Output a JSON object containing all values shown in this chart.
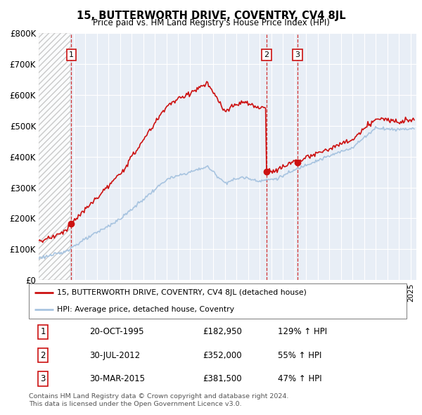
{
  "title": "15, BUTTERWORTH DRIVE, COVENTRY, CV4 8JL",
  "subtitle": "Price paid vs. HM Land Registry's House Price Index (HPI)",
  "ylim": [
    0,
    800000
  ],
  "yticks": [
    0,
    100000,
    200000,
    300000,
    400000,
    500000,
    600000,
    700000,
    800000
  ],
  "ytick_labels": [
    "£0",
    "£100K",
    "£200K",
    "£300K",
    "£400K",
    "£500K",
    "£600K",
    "£700K",
    "£800K"
  ],
  "hpi_color": "#a8c4e0",
  "price_color": "#cc1111",
  "marker_color": "#cc1111",
  "dashed_color": "#cc1111",
  "bg_color": "#e8eef6",
  "legend_text1": "15, BUTTERWORTH DRIVE, COVENTRY, CV4 8JL (detached house)",
  "legend_text2": "HPI: Average price, detached house, Coventry",
  "transaction1_date": "20-OCT-1995",
  "transaction1_price": "£182,950",
  "transaction1_hpi": "129% ↑ HPI",
  "transaction2_date": "30-JUL-2012",
  "transaction2_price": "£352,000",
  "transaction2_hpi": "55% ↑ HPI",
  "transaction3_date": "30-MAR-2015",
  "transaction3_price": "£381,500",
  "transaction3_hpi": "47% ↑ HPI",
  "footer1": "Contains HM Land Registry data © Crown copyright and database right 2024.",
  "footer2": "This data is licensed under the Open Government Licence v3.0.",
  "sale_years": [
    1995.8,
    2012.58,
    2015.25
  ],
  "sale_prices": [
    182950,
    352000,
    381500
  ],
  "hatch_end_year": 1995.8,
  "xlim_left": 1993.0,
  "xlim_right": 2025.5
}
